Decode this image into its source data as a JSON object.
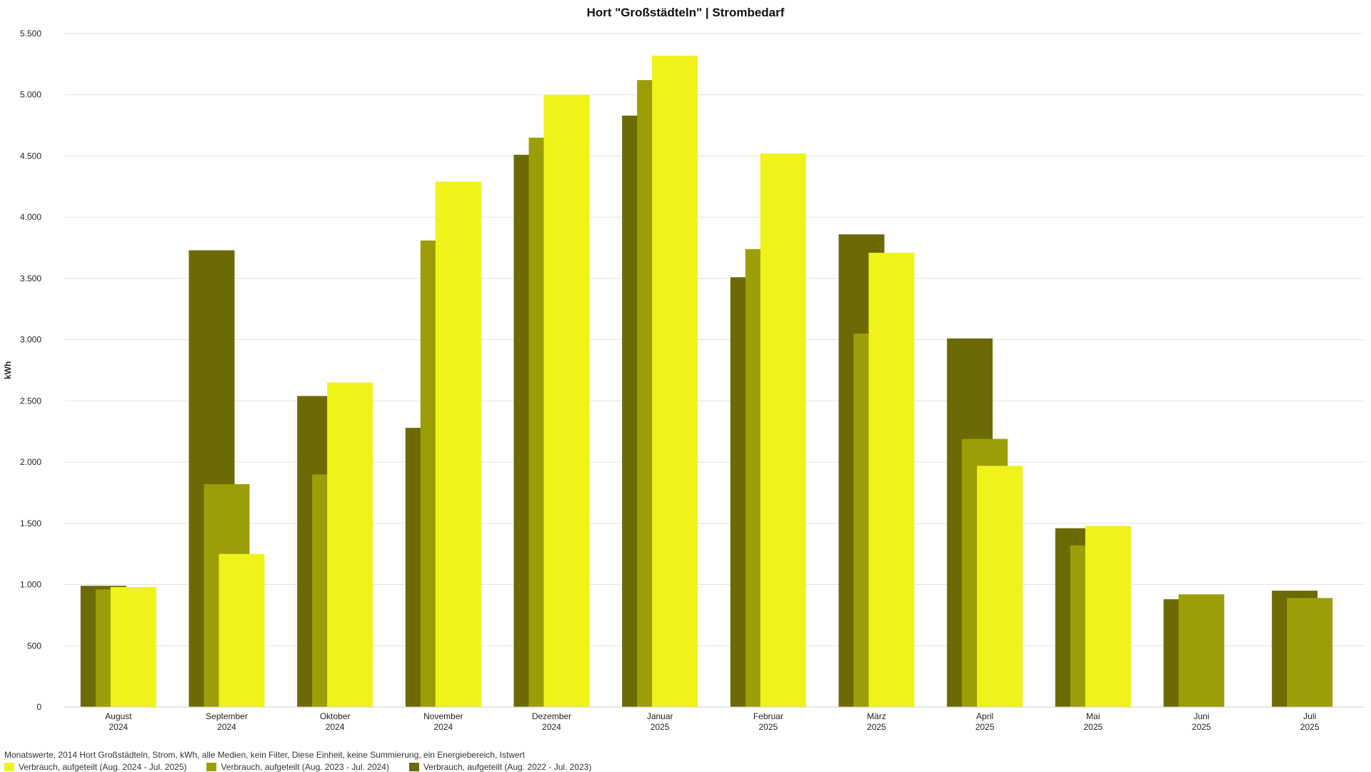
{
  "chart_data": {
    "type": "bar",
    "title": "Hort \"Großstädteln\" | Strombedarf",
    "subtitle": "Monatswerte, 2014 Hort Großstädteln, Strom, kWh, alle Medien, kein Filter, Diese Einheit, keine Summierung, ein Energiebereich, Istwert",
    "ylabel": "kWh",
    "xlabel": "",
    "ylim": [
      0,
      5500
    ],
    "yticks": [
      0,
      500,
      1000,
      1500,
      2000,
      2500,
      3000,
      3500,
      4000,
      4500,
      5000,
      5500
    ],
    "ytick_labels": [
      "0",
      "500",
      "1.000",
      "1.500",
      "2.000",
      "2.500",
      "3.000",
      "3.500",
      "4.000",
      "4.500",
      "5.000",
      "5.500"
    ],
    "grid": true,
    "legend_position": "bottom-left",
    "categories": [
      {
        "month": "August",
        "year": "2024"
      },
      {
        "month": "September",
        "year": "2024"
      },
      {
        "month": "Oktober",
        "year": "2024"
      },
      {
        "month": "November",
        "year": "2024"
      },
      {
        "month": "Dezember",
        "year": "2024"
      },
      {
        "month": "Januar",
        "year": "2025"
      },
      {
        "month": "Februar",
        "year": "2025"
      },
      {
        "month": "März",
        "year": "2025"
      },
      {
        "month": "April",
        "year": "2025"
      },
      {
        "month": "Mai",
        "year": "2025"
      },
      {
        "month": "Juni",
        "year": "2025"
      },
      {
        "month": "Juli",
        "year": "2025"
      }
    ],
    "series": [
      {
        "name": "Verbrauch, aufgeteilt (Aug. 2022 - Jul. 2023)",
        "color": "#6b6a04",
        "values": [
          990,
          3730,
          2540,
          2280,
          4510,
          4830,
          3510,
          3860,
          3010,
          1460,
          880,
          950
        ]
      },
      {
        "name": "Verbrauch, aufgeteilt (Aug. 2023 - Jul. 2024)",
        "color": "#9c9e08",
        "values": [
          960,
          1820,
          1900,
          3810,
          4650,
          5120,
          3740,
          3050,
          2190,
          1320,
          920,
          890
        ]
      },
      {
        "name": "Verbrauch, aufgeteilt (Aug. 2024 - Jul. 2025)",
        "color": "#eff31a",
        "values": [
          980,
          1250,
          2650,
          4290,
          5000,
          5320,
          4520,
          3710,
          1970,
          1480,
          null,
          null
        ]
      }
    ],
    "legend_order": [
      2,
      1,
      0
    ]
  }
}
